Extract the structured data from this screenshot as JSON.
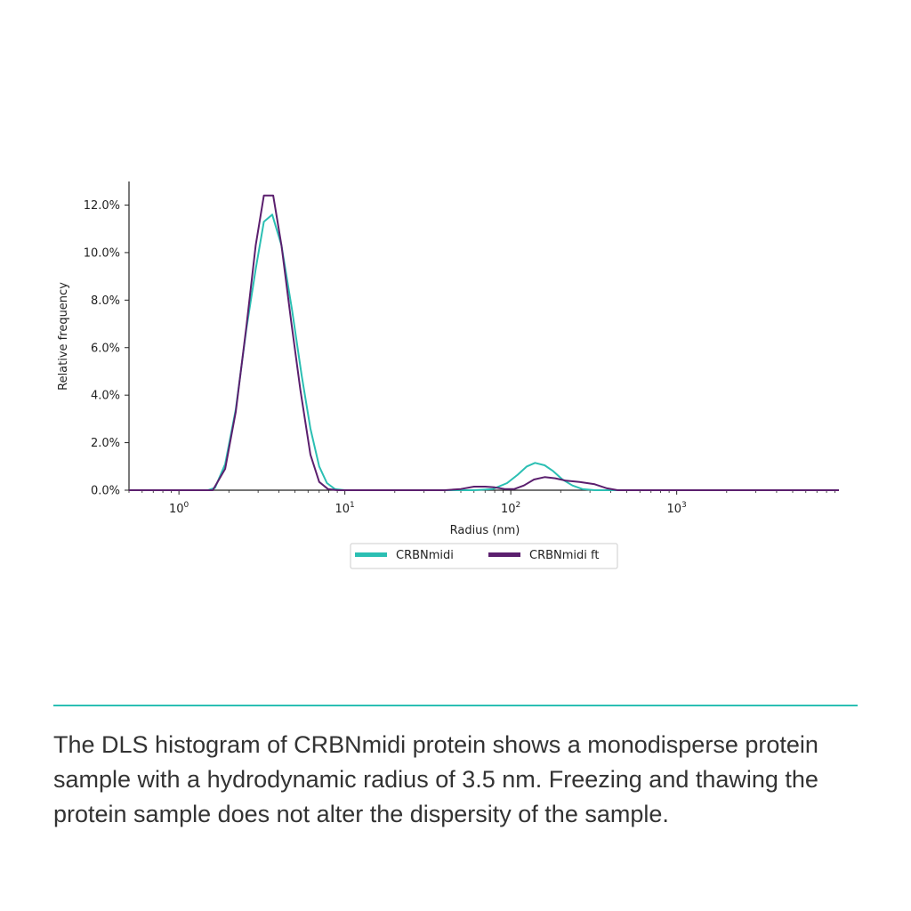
{
  "chart_data": {
    "type": "line",
    "xlabel": "Radius (nm)",
    "ylabel": "Relative frequency",
    "xscale": "log",
    "xlim": [
      0.5,
      9500
    ],
    "ylim": [
      0,
      13
    ],
    "x_ticks": [
      {
        "value": 1,
        "label": "10",
        "exp": "0"
      },
      {
        "value": 10,
        "label": "10",
        "exp": "1"
      },
      {
        "value": 100,
        "label": "10",
        "exp": "2"
      },
      {
        "value": 1000,
        "label": "10",
        "exp": "3"
      }
    ],
    "y_ticks": [
      {
        "value": 0,
        "label": "0.0%"
      },
      {
        "value": 2,
        "label": "2.0%"
      },
      {
        "value": 4,
        "label": "4.0%"
      },
      {
        "value": 6,
        "label": "6.0%"
      },
      {
        "value": 8,
        "label": "8.0%"
      },
      {
        "value": 10,
        "label": "10.0%"
      },
      {
        "value": 12,
        "label": "12.0%"
      }
    ],
    "legend_position": "below-center",
    "series": [
      {
        "name": "CRBNmidi",
        "color": "#2bbfb3",
        "points": [
          [
            0.5,
            0
          ],
          [
            1.5,
            0
          ],
          [
            1.65,
            0.1
          ],
          [
            1.9,
            1.1
          ],
          [
            2.2,
            3.4
          ],
          [
            2.55,
            6.8
          ],
          [
            2.9,
            9.3
          ],
          [
            3.25,
            11.3
          ],
          [
            3.65,
            11.6
          ],
          [
            4.15,
            10.3
          ],
          [
            4.8,
            7.6
          ],
          [
            5.5,
            4.8
          ],
          [
            6.2,
            2.6
          ],
          [
            7.0,
            1.0
          ],
          [
            7.8,
            0.3
          ],
          [
            8.7,
            0.05
          ],
          [
            10,
            0
          ],
          [
            60,
            0
          ],
          [
            78,
            0.05
          ],
          [
            95,
            0.3
          ],
          [
            110,
            0.65
          ],
          [
            125,
            1.0
          ],
          [
            140,
            1.15
          ],
          [
            160,
            1.05
          ],
          [
            180,
            0.8
          ],
          [
            205,
            0.45
          ],
          [
            235,
            0.2
          ],
          [
            270,
            0.05
          ],
          [
            320,
            0
          ],
          [
            9500,
            0
          ]
        ]
      },
      {
        "name": "CRBNmidi ft",
        "color": "#5b1f6e",
        "points": [
          [
            0.5,
            0
          ],
          [
            1.6,
            0
          ],
          [
            1.9,
            0.9
          ],
          [
            2.2,
            3.3
          ],
          [
            2.55,
            6.9
          ],
          [
            2.9,
            10.3
          ],
          [
            3.25,
            12.4
          ],
          [
            3.7,
            12.4
          ],
          [
            4.15,
            10.3
          ],
          [
            4.75,
            7.1
          ],
          [
            5.4,
            4.2
          ],
          [
            6.2,
            1.5
          ],
          [
            7.0,
            0.35
          ],
          [
            7.9,
            0.05
          ],
          [
            9,
            0
          ],
          [
            40,
            0
          ],
          [
            50,
            0.05
          ],
          [
            60,
            0.15
          ],
          [
            70,
            0.15
          ],
          [
            80,
            0.12
          ],
          [
            92,
            0.05
          ],
          [
            105,
            0.05
          ],
          [
            120,
            0.2
          ],
          [
            138,
            0.45
          ],
          [
            160,
            0.55
          ],
          [
            185,
            0.5
          ],
          [
            215,
            0.4
          ],
          [
            260,
            0.35
          ],
          [
            320,
            0.25
          ],
          [
            380,
            0.08
          ],
          [
            440,
            0
          ],
          [
            9500,
            0
          ]
        ]
      }
    ]
  },
  "caption": "The DLS histogram of CRBNmidi protein shows a monodisperse protein sample with a hydrodynamic radius of 3.5 nm. Freezing and thawing the protein sample does not alter the dispersity of the sample."
}
